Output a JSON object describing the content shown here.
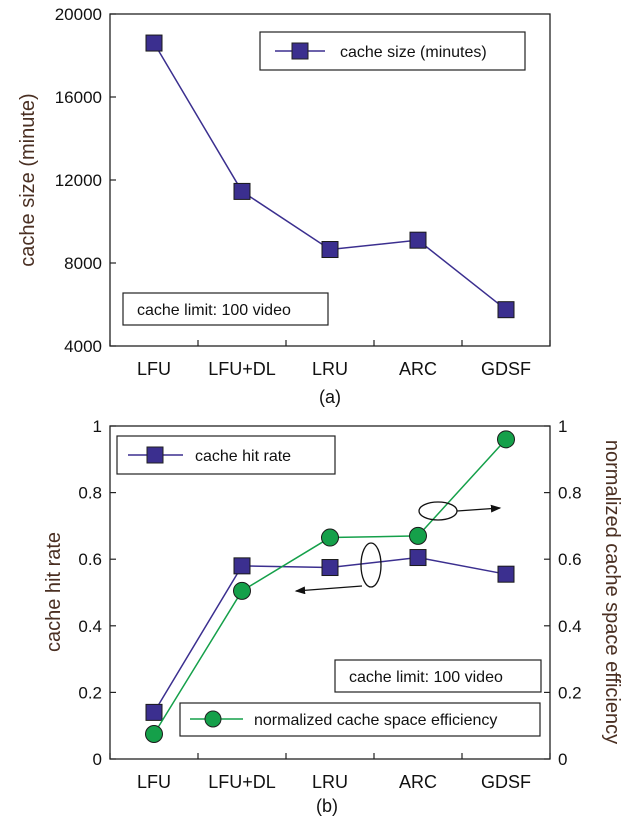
{
  "chart_data": [
    {
      "type": "line",
      "caption": "(a)",
      "categories": [
        "LFU",
        "LFU+DL",
        "LRU",
        "ARC",
        "GDSF"
      ],
      "series": [
        {
          "name": "cache size (minutes)",
          "values": [
            18600,
            11450,
            8650,
            9100,
            5750
          ],
          "color": "#3b2f8f",
          "marker": "square"
        }
      ],
      "ylabel": "cache size (minute)",
      "ylim": [
        4000,
        20000
      ],
      "yticks": [
        "4000",
        "8000",
        "12000",
        "16000",
        "20000"
      ],
      "annotation": "cache limit: 100 video",
      "legend_position": "top-right",
      "grid": false
    },
    {
      "type": "line",
      "caption": "(b)",
      "categories": [
        "LFU",
        "LFU+DL",
        "LRU",
        "ARC",
        "GDSF"
      ],
      "series": [
        {
          "name": "cache hit rate",
          "axis": "left",
          "values": [
            0.14,
            0.58,
            0.575,
            0.605,
            0.555
          ],
          "color": "#3b2f8f",
          "marker": "square"
        },
        {
          "name": "normalized cache space efficiency",
          "axis": "right",
          "values": [
            0.075,
            0.505,
            0.665,
            0.67,
            0.96
          ],
          "color": "#15a04a",
          "marker": "circle"
        }
      ],
      "ylabel": "cache hit rate",
      "ylabel_right": "normalized cache space efficiency",
      "ylim": [
        0,
        1
      ],
      "ylim_right": [
        0,
        1
      ],
      "yticks": [
        "0",
        "0.2",
        "0.4",
        "0.6",
        "0.8",
        "1"
      ],
      "yticks_right": [
        "0",
        "0.2",
        "0.4",
        "0.6",
        "0.8",
        "1"
      ],
      "annotation": "cache limit: 100 video",
      "legend_positions": [
        "top-left",
        "bottom-right"
      ],
      "grid": false
    }
  ]
}
